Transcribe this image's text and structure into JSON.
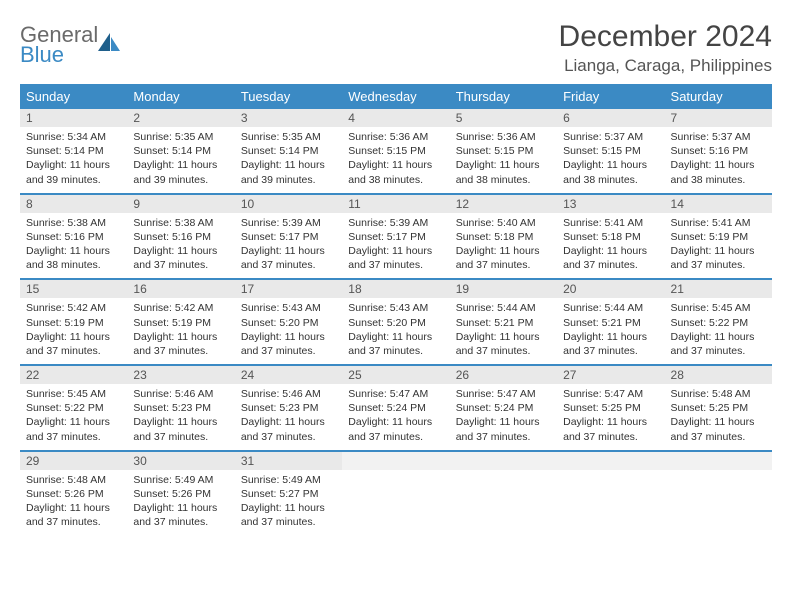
{
  "brand": {
    "word1": "General",
    "word2": "Blue",
    "text_color": "#6a6a6a",
    "accent_color": "#3b8ac4"
  },
  "title": "December 2024",
  "location": "Lianga, Caraga, Philippines",
  "colors": {
    "header_bg": "#3b8ac4",
    "header_text": "#ffffff",
    "daynum_bg": "#e9e9e9",
    "row_divider": "#3b8ac4",
    "body_text": "#333333"
  },
  "weekdays": [
    "Sunday",
    "Monday",
    "Tuesday",
    "Wednesday",
    "Thursday",
    "Friday",
    "Saturday"
  ],
  "weeks": [
    [
      {
        "num": "1",
        "sunrise": "5:34 AM",
        "sunset": "5:14 PM",
        "day_h": "11",
        "day_m": "39"
      },
      {
        "num": "2",
        "sunrise": "5:35 AM",
        "sunset": "5:14 PM",
        "day_h": "11",
        "day_m": "39"
      },
      {
        "num": "3",
        "sunrise": "5:35 AM",
        "sunset": "5:14 PM",
        "day_h": "11",
        "day_m": "39"
      },
      {
        "num": "4",
        "sunrise": "5:36 AM",
        "sunset": "5:15 PM",
        "day_h": "11",
        "day_m": "38"
      },
      {
        "num": "5",
        "sunrise": "5:36 AM",
        "sunset": "5:15 PM",
        "day_h": "11",
        "day_m": "38"
      },
      {
        "num": "6",
        "sunrise": "5:37 AM",
        "sunset": "5:15 PM",
        "day_h": "11",
        "day_m": "38"
      },
      {
        "num": "7",
        "sunrise": "5:37 AM",
        "sunset": "5:16 PM",
        "day_h": "11",
        "day_m": "38"
      }
    ],
    [
      {
        "num": "8",
        "sunrise": "5:38 AM",
        "sunset": "5:16 PM",
        "day_h": "11",
        "day_m": "38"
      },
      {
        "num": "9",
        "sunrise": "5:38 AM",
        "sunset": "5:16 PM",
        "day_h": "11",
        "day_m": "37"
      },
      {
        "num": "10",
        "sunrise": "5:39 AM",
        "sunset": "5:17 PM",
        "day_h": "11",
        "day_m": "37"
      },
      {
        "num": "11",
        "sunrise": "5:39 AM",
        "sunset": "5:17 PM",
        "day_h": "11",
        "day_m": "37"
      },
      {
        "num": "12",
        "sunrise": "5:40 AM",
        "sunset": "5:18 PM",
        "day_h": "11",
        "day_m": "37"
      },
      {
        "num": "13",
        "sunrise": "5:41 AM",
        "sunset": "5:18 PM",
        "day_h": "11",
        "day_m": "37"
      },
      {
        "num": "14",
        "sunrise": "5:41 AM",
        "sunset": "5:19 PM",
        "day_h": "11",
        "day_m": "37"
      }
    ],
    [
      {
        "num": "15",
        "sunrise": "5:42 AM",
        "sunset": "5:19 PM",
        "day_h": "11",
        "day_m": "37"
      },
      {
        "num": "16",
        "sunrise": "5:42 AM",
        "sunset": "5:19 PM",
        "day_h": "11",
        "day_m": "37"
      },
      {
        "num": "17",
        "sunrise": "5:43 AM",
        "sunset": "5:20 PM",
        "day_h": "11",
        "day_m": "37"
      },
      {
        "num": "18",
        "sunrise": "5:43 AM",
        "sunset": "5:20 PM",
        "day_h": "11",
        "day_m": "37"
      },
      {
        "num": "19",
        "sunrise": "5:44 AM",
        "sunset": "5:21 PM",
        "day_h": "11",
        "day_m": "37"
      },
      {
        "num": "20",
        "sunrise": "5:44 AM",
        "sunset": "5:21 PM",
        "day_h": "11",
        "day_m": "37"
      },
      {
        "num": "21",
        "sunrise": "5:45 AM",
        "sunset": "5:22 PM",
        "day_h": "11",
        "day_m": "37"
      }
    ],
    [
      {
        "num": "22",
        "sunrise": "5:45 AM",
        "sunset": "5:22 PM",
        "day_h": "11",
        "day_m": "37"
      },
      {
        "num": "23",
        "sunrise": "5:46 AM",
        "sunset": "5:23 PM",
        "day_h": "11",
        "day_m": "37"
      },
      {
        "num": "24",
        "sunrise": "5:46 AM",
        "sunset": "5:23 PM",
        "day_h": "11",
        "day_m": "37"
      },
      {
        "num": "25",
        "sunrise": "5:47 AM",
        "sunset": "5:24 PM",
        "day_h": "11",
        "day_m": "37"
      },
      {
        "num": "26",
        "sunrise": "5:47 AM",
        "sunset": "5:24 PM",
        "day_h": "11",
        "day_m": "37"
      },
      {
        "num": "27",
        "sunrise": "5:47 AM",
        "sunset": "5:25 PM",
        "day_h": "11",
        "day_m": "37"
      },
      {
        "num": "28",
        "sunrise": "5:48 AM",
        "sunset": "5:25 PM",
        "day_h": "11",
        "day_m": "37"
      }
    ],
    [
      {
        "num": "29",
        "sunrise": "5:48 AM",
        "sunset": "5:26 PM",
        "day_h": "11",
        "day_m": "37"
      },
      {
        "num": "30",
        "sunrise": "5:49 AM",
        "sunset": "5:26 PM",
        "day_h": "11",
        "day_m": "37"
      },
      {
        "num": "31",
        "sunrise": "5:49 AM",
        "sunset": "5:27 PM",
        "day_h": "11",
        "day_m": "37"
      },
      {
        "empty": true
      },
      {
        "empty": true
      },
      {
        "empty": true
      },
      {
        "empty": true
      }
    ]
  ],
  "labels": {
    "sunrise": "Sunrise:",
    "sunset": "Sunset:",
    "daylight_prefix": "Daylight:",
    "hours_word": "hours",
    "and_word": "and",
    "minutes_word": "minutes."
  }
}
